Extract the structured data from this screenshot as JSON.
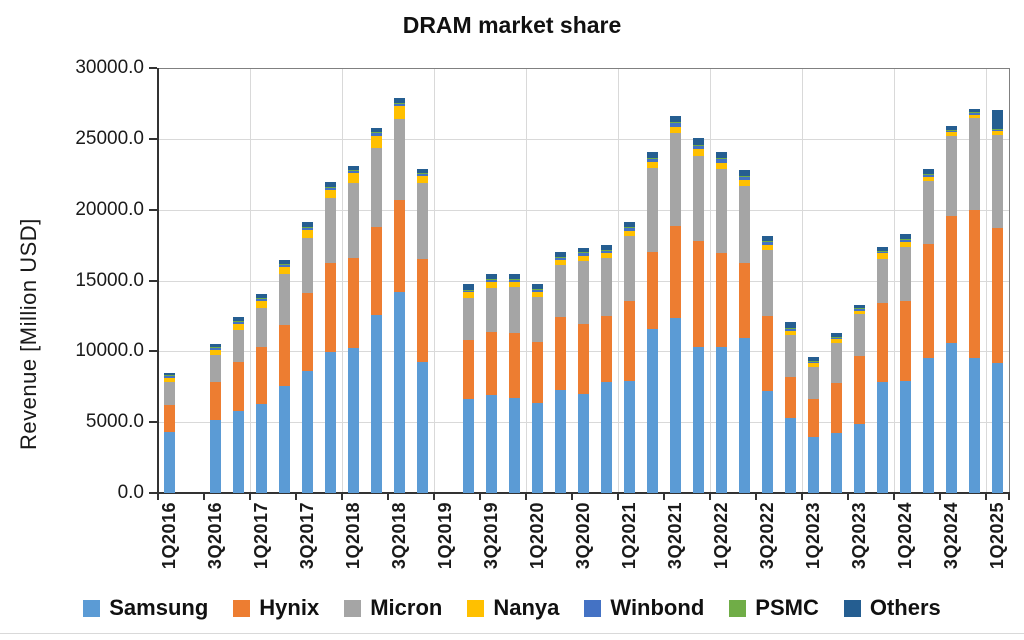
{
  "title": "DRAM market share",
  "y_axis": {
    "label": "Revenue [Million USD]",
    "tick_labels": [
      "0.0",
      "5000.0",
      "10000.0",
      "15000.0",
      "20000.0",
      "25000.0",
      "30000.0"
    ],
    "tick_step": 5000,
    "max": 30000
  },
  "chart_data": {
    "type": "bar",
    "stacked": true,
    "title": "DRAM market share",
    "ylabel": "Revenue [Million USD]",
    "ylim": [
      0,
      30000
    ],
    "grid": "horizontal-5000-and-yearly-vertical",
    "legend_position": "bottom",
    "x_label_interval": 2,
    "categories": [
      "1Q2016",
      "2Q2016",
      "3Q2016",
      "4Q2016",
      "1Q2017",
      "2Q2017",
      "3Q2017",
      "4Q2017",
      "1Q2018",
      "2Q2018",
      "3Q2018",
      "4Q2018",
      "1Q2019",
      "2Q2019",
      "3Q2019",
      "4Q2019",
      "1Q2020",
      "2Q2020",
      "3Q2020",
      "4Q2020",
      "1Q2021",
      "2Q2021",
      "3Q2021",
      "4Q2021",
      "1Q2022",
      "2Q2022",
      "3Q2022",
      "4Q2022",
      "1Q2023",
      "2Q2023",
      "3Q2023",
      "4Q2023",
      "1Q2024",
      "2Q2024",
      "3Q2024",
      "4Q2024",
      "1Q2025"
    ],
    "note": "values in Million USD; null = no bar shown (2Q2016, 1Q2019)",
    "series": [
      {
        "name": "Samsung",
        "color": "#5B9BD5",
        "values": [
          4330,
          null,
          5150,
          5790,
          6260,
          7550,
          8620,
          9980,
          10220,
          12570,
          14170,
          9280,
          null,
          6640,
          6920,
          6730,
          6340,
          7280,
          6970,
          7860,
          7910,
          11560,
          12380,
          10290,
          10290,
          10920,
          7230,
          5280,
          3940,
          4260,
          4880,
          7820,
          7910,
          9560,
          10570,
          9510,
          9160
        ]
      },
      {
        "name": "Hynix",
        "color": "#ED7D31",
        "values": [
          1880,
          null,
          2670,
          3430,
          4040,
          4310,
          5520,
          6280,
          6390,
          6230,
          6510,
          7220,
          null,
          4160,
          4470,
          4550,
          4350,
          5170,
          4940,
          4640,
          5650,
          5480,
          6470,
          7500,
          6670,
          5290,
          5270,
          2940,
          2680,
          3490,
          4800,
          5570,
          5650,
          8000,
          9010,
          10470,
          9570
        ]
      },
      {
        "name": "Micron",
        "color": "#A5A5A5",
        "values": [
          1640,
          null,
          1900,
          2310,
          2750,
          3580,
          3850,
          4540,
          5300,
          5530,
          5710,
          5400,
          null,
          2990,
          3110,
          3290,
          3170,
          3650,
          4470,
          4070,
          4580,
          5880,
          6540,
          6000,
          5890,
          5460,
          4660,
          2940,
          2260,
          2820,
          2940,
          3110,
          3830,
          4470,
          5640,
          6470,
          6550
        ]
      },
      {
        "name": "Nanya",
        "color": "#FFC000",
        "values": [
          300,
          null,
          390,
          420,
          500,
          530,
          580,
          600,
          650,
          890,
          940,
          470,
          null,
          380,
          420,
          330,
          350,
          350,
          380,
          350,
          380,
          470,
          470,
          470,
          470,
          420,
          350,
          300,
          280,
          280,
          260,
          420,
          350,
          300,
          240,
          230,
          280
        ]
      },
      {
        "name": "Winbond",
        "color": "#4472C4",
        "values": [
          120,
          null,
          130,
          145,
          160,
          165,
          170,
          170,
          180,
          195,
          170,
          160,
          null,
          150,
          160,
          160,
          160,
          170,
          180,
          190,
          200,
          230,
          240,
          240,
          240,
          230,
          200,
          160,
          140,
          140,
          140,
          150,
          150,
          150,
          150,
          150,
          100
        ]
      },
      {
        "name": "PSMC",
        "color": "#70AD47",
        "values": [
          30,
          null,
          35,
          40,
          40,
          45,
          45,
          45,
          45,
          45,
          40,
          40,
          null,
          40,
          40,
          40,
          40,
          45,
          45,
          50,
          50,
          60,
          60,
          60,
          60,
          55,
          50,
          40,
          35,
          35,
          35,
          40,
          40,
          40,
          40,
          40,
          20
        ]
      },
      {
        "name": "Others",
        "color": "#255E91",
        "values": [
          160,
          null,
          245,
          275,
          300,
          270,
          325,
          310,
          330,
          320,
          330,
          330,
          null,
          370,
          320,
          340,
          320,
          325,
          335,
          350,
          380,
          420,
          460,
          480,
          480,
          425,
          380,
          390,
          245,
          255,
          225,
          280,
          330,
          350,
          280,
          240,
          1360
        ]
      }
    ]
  },
  "legend": [
    {
      "label": "Samsung",
      "color": "#5B9BD5"
    },
    {
      "label": "Hynix",
      "color": "#ED7D31"
    },
    {
      "label": "Micron",
      "color": "#A5A5A5"
    },
    {
      "label": "Nanya",
      "color": "#FFC000"
    },
    {
      "label": "Winbond",
      "color": "#4472C4"
    },
    {
      "label": "PSMC",
      "color": "#70AD47"
    },
    {
      "label": "Others",
      "color": "#255E91"
    }
  ]
}
